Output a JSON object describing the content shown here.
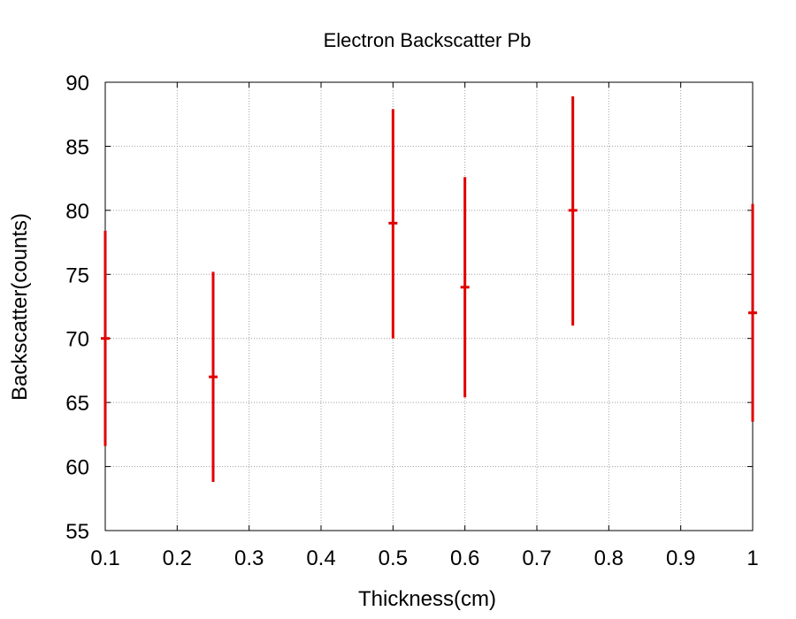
{
  "chart_data": {
    "type": "scatter",
    "title": "Electron Backscatter Pb",
    "xlabel": "Thickness(cm)",
    "ylabel": "Backscatter(counts)",
    "xlim": [
      0.1,
      1
    ],
    "ylim": [
      55,
      90
    ],
    "xticks": [
      0.1,
      0.2,
      0.3,
      0.4,
      0.5,
      0.6,
      0.7,
      0.8,
      0.9,
      1
    ],
    "xtick_labels": [
      "0.1",
      "0.2",
      "0.3",
      "0.4",
      "0.5",
      "0.6",
      "0.7",
      "0.8",
      "0.9",
      "1"
    ],
    "yticks": [
      55,
      60,
      65,
      70,
      75,
      80,
      85,
      90
    ],
    "ytick_labels": [
      "55",
      "60",
      "65",
      "70",
      "75",
      "80",
      "85",
      "90"
    ],
    "grid": true,
    "series": [
      {
        "color": "#e00000",
        "points": [
          {
            "x": 0.1,
            "y": 70,
            "ylow": 61.6,
            "yhigh": 78.4
          },
          {
            "x": 0.25,
            "y": 67,
            "ylow": 58.8,
            "yhigh": 75.2
          },
          {
            "x": 0.5,
            "y": 79,
            "ylow": 70.0,
            "yhigh": 87.9
          },
          {
            "x": 0.6,
            "y": 74,
            "ylow": 65.4,
            "yhigh": 82.6
          },
          {
            "x": 0.75,
            "y": 80,
            "ylow": 71.0,
            "yhigh": 88.9
          },
          {
            "x": 1.0,
            "y": 72,
            "ylow": 63.5,
            "yhigh": 80.5
          }
        ]
      }
    ]
  }
}
